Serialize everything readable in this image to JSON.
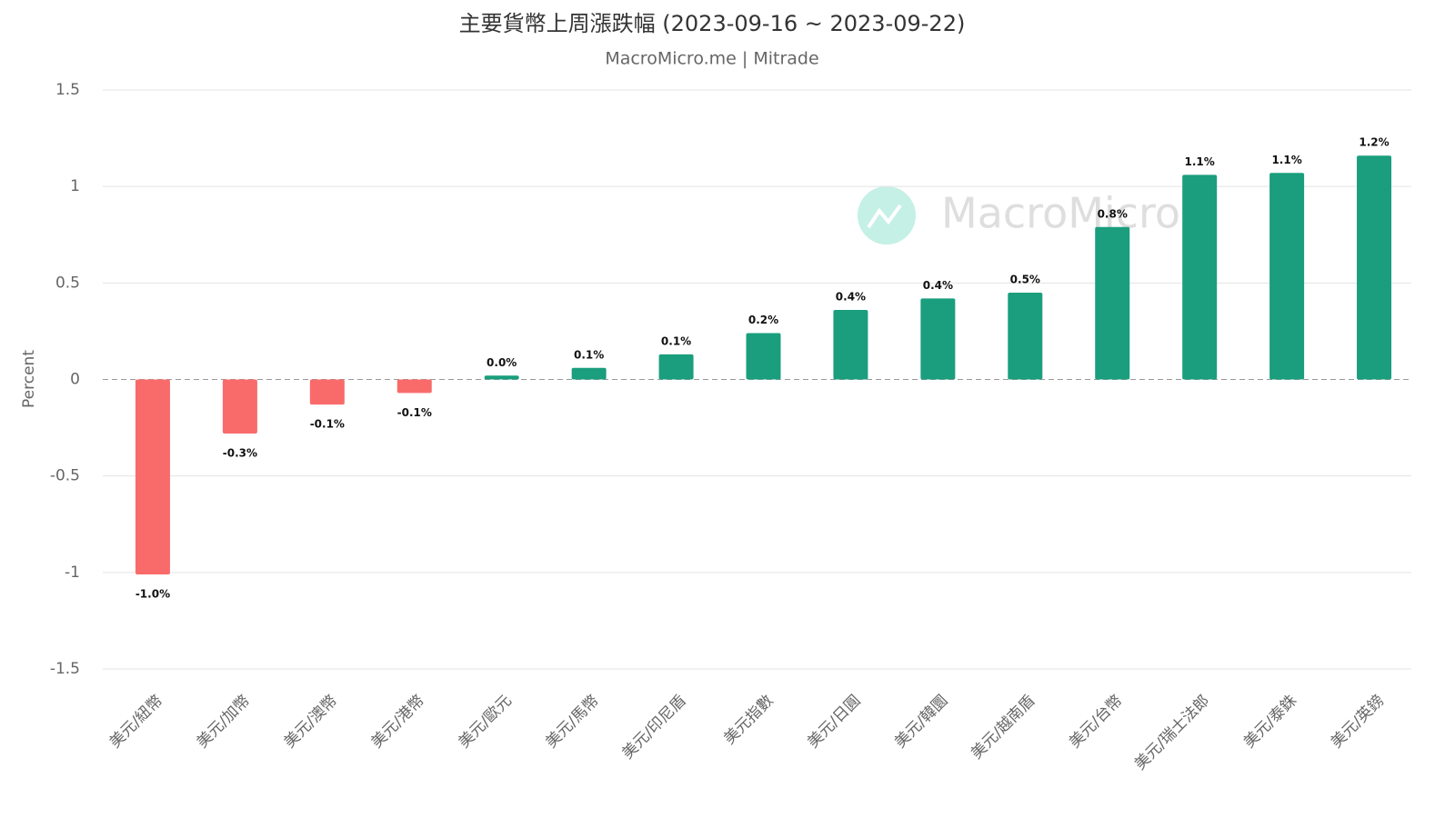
{
  "chart_data": {
    "type": "bar",
    "title": "主要貨幣上周漲跌幅 (2023-09-16 ~ 2023-09-22)",
    "subtitle": "MacroMicro.me | Mitrade",
    "watermark": "MacroMicro",
    "y_label": "Percent",
    "categories": [
      "美元/紐幣",
      "美元/加幣",
      "美元/澳幣",
      "美元/港幣",
      "美元/歐元",
      "美元/馬幣",
      "美元/印尼盾",
      "美元指數",
      "美元/日圓",
      "美元/韓圜",
      "美元/越南盾",
      "美元/台幣",
      "美元/瑞士法郎",
      "美元/泰銖",
      "美元/英鎊"
    ],
    "values": [
      -1.01,
      -0.28,
      -0.13,
      -0.07,
      0.02,
      0.06,
      0.13,
      0.24,
      0.36,
      0.42,
      0.45,
      0.79,
      1.06,
      1.07,
      1.16
    ],
    "value_labels": [
      "-1.0%",
      "-0.3%",
      "-0.1%",
      "-0.1%",
      "0.0%",
      "0.1%",
      "0.1%",
      "0.2%",
      "0.4%",
      "0.4%",
      "0.5%",
      "0.8%",
      "1.1%",
      "1.1%",
      "1.2%"
    ],
    "positive_color": "#1a9e7e",
    "negative_color": "#f96b6b",
    "ylim": [
      -1.5,
      1.5
    ],
    "yticks": [
      1.5,
      1,
      0.5,
      0,
      -0.5,
      -1,
      -1.5
    ],
    "grid": true
  }
}
